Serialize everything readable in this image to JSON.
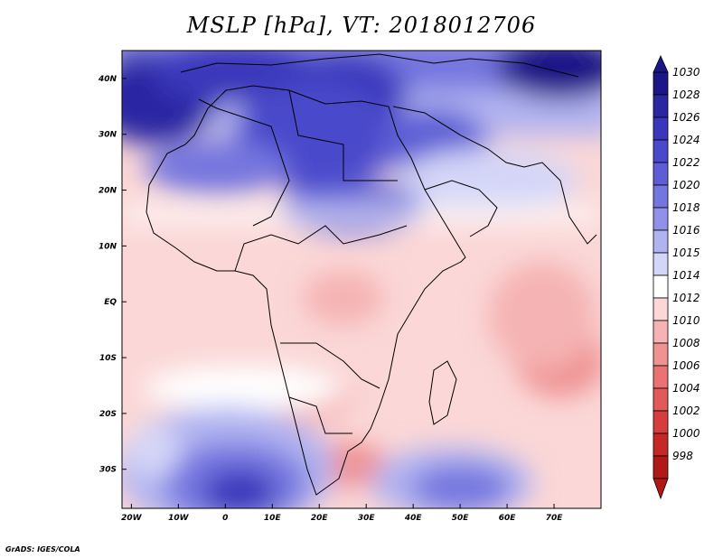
{
  "title": "MSLP [hPa], VT: 2018012706",
  "credit": "GrADS: IGES/COLA",
  "axes": {
    "lat_labels": [
      "40N",
      "30N",
      "20N",
      "10N",
      "EQ",
      "10S",
      "20S",
      "30S"
    ],
    "lat_values": [
      40,
      30,
      20,
      10,
      0,
      -10,
      -20,
      -30
    ],
    "lon_labels": [
      "20W",
      "10W",
      "0",
      "10E",
      "20E",
      "30E",
      "40E",
      "50E",
      "60E",
      "70E"
    ],
    "lon_values": [
      -20,
      -10,
      0,
      10,
      20,
      30,
      40,
      50,
      60,
      70
    ],
    "lon_range": [
      -22,
      80
    ],
    "lat_range": [
      -37,
      45
    ]
  },
  "colorbar": {
    "levels": [
      "1030",
      "1028",
      "1026",
      "1024",
      "1022",
      "1020",
      "1018",
      "1016",
      "1015",
      "1014",
      "1012",
      "1010",
      "1008",
      "1006",
      "1004",
      "1002",
      "1000",
      "998"
    ],
    "colors": [
      "#1c1687",
      "#2b27a3",
      "#3a37bc",
      "#4a48cb",
      "#5d5ed6",
      "#7476df",
      "#8f92e8",
      "#b1b3f0",
      "#d4d6f8",
      "#ffffff",
      "#fbd7d7",
      "#f5b3b3",
      "#ef9292",
      "#e97373",
      "#e35858",
      "#d63e3e",
      "#c62828",
      "#b11818"
    ]
  }
}
